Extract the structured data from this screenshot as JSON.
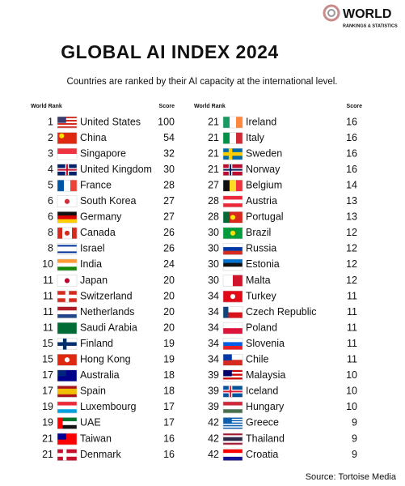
{
  "logo": {
    "name": "WORLD",
    "tagline": "RANKINGS & STATISTICS"
  },
  "title": "GLOBAL AI INDEX 2024",
  "subtitle": "Countries are ranked by their AI capacity at the international level.",
  "columns": {
    "rank": "World Rank",
    "score": "Score"
  },
  "left": {
    "rows": [
      {
        "rank": 1,
        "country": "United States",
        "score": 100
      },
      {
        "rank": 2,
        "country": "China",
        "score": 54
      },
      {
        "rank": 3,
        "country": "Singapore",
        "score": 32
      },
      {
        "rank": 4,
        "country": "United Kingdom",
        "score": 30
      },
      {
        "rank": 5,
        "country": "France",
        "score": 28
      },
      {
        "rank": 6,
        "country": "South Korea",
        "score": 27
      },
      {
        "rank": 6,
        "country": "Germany",
        "score": 27
      },
      {
        "rank": 8,
        "country": "Canada",
        "score": 26
      },
      {
        "rank": 8,
        "country": "Israel",
        "score": 26
      },
      {
        "rank": 10,
        "country": "India",
        "score": 24
      },
      {
        "rank": 11,
        "country": "Japan",
        "score": 20
      },
      {
        "rank": 11,
        "country": "Switzerland",
        "score": 20
      },
      {
        "rank": 11,
        "country": "Netherlands",
        "score": 20
      },
      {
        "rank": 11,
        "country": "Saudi Arabia",
        "score": 20
      },
      {
        "rank": 15,
        "country": "Finland",
        "score": 19
      },
      {
        "rank": 15,
        "country": "Hong Kong",
        "score": 19
      },
      {
        "rank": 17,
        "country": "Australia",
        "score": 18
      },
      {
        "rank": 17,
        "country": "Spain",
        "score": 18
      },
      {
        "rank": 19,
        "country": "Luxembourg",
        "score": 17
      },
      {
        "rank": 19,
        "country": "UAE",
        "score": 17
      },
      {
        "rank": 21,
        "country": "Taiwan",
        "score": 16
      },
      {
        "rank": 21,
        "country": "Denmark",
        "score": 16
      }
    ]
  },
  "right": {
    "rows": [
      {
        "rank": 21,
        "country": "Ireland",
        "score": 16
      },
      {
        "rank": 21,
        "country": "Italy",
        "score": 16
      },
      {
        "rank": 21,
        "country": "Sweden",
        "score": 16
      },
      {
        "rank": 21,
        "country": "Norway",
        "score": 16
      },
      {
        "rank": 27,
        "country": "Belgium",
        "score": 14
      },
      {
        "rank": 28,
        "country": "Austria",
        "score": 13
      },
      {
        "rank": 28,
        "country": "Portugal",
        "score": 13
      },
      {
        "rank": 30,
        "country": "Brazil",
        "score": 12
      },
      {
        "rank": 30,
        "country": "Russia",
        "score": 12
      },
      {
        "rank": 30,
        "country": "Estonia",
        "score": 12
      },
      {
        "rank": 30,
        "country": "Malta",
        "score": 12
      },
      {
        "rank": 34,
        "country": "Turkey",
        "score": 11
      },
      {
        "rank": 34,
        "country": "Czech Republic",
        "score": 11
      },
      {
        "rank": 34,
        "country": "Poland",
        "score": 11
      },
      {
        "rank": 34,
        "country": "Slovenia",
        "score": 11
      },
      {
        "rank": 34,
        "country": "Chile",
        "score": 11
      },
      {
        "rank": 39,
        "country": "Malaysia",
        "score": 10
      },
      {
        "rank": 39,
        "country": "Iceland",
        "score": 10
      },
      {
        "rank": 39,
        "country": "Hungary",
        "score": 10
      },
      {
        "rank": 42,
        "country": "Greece",
        "score": 9
      },
      {
        "rank": 42,
        "country": "Thailand",
        "score": 9
      },
      {
        "rank": 42,
        "country": "Croatia",
        "score": 9
      }
    ]
  },
  "source": "Source: Tortoise Media"
}
